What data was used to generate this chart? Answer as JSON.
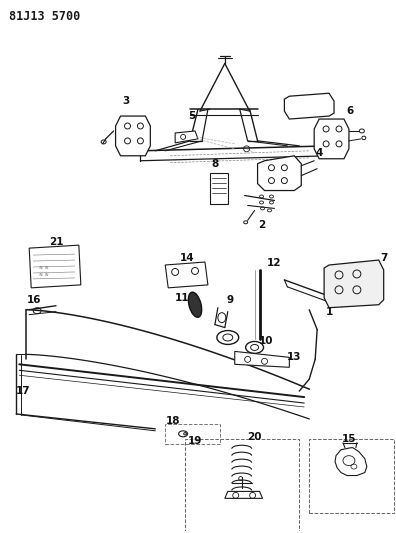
{
  "title": "81J13 5700",
  "title_fontsize": 8.5,
  "title_fontweight": "bold",
  "bg_color": "#ffffff",
  "line_color": "#1a1a1a",
  "label_color": "#111111",
  "label_fontsize": 6.5,
  "fig_width": 3.96,
  "fig_height": 5.33,
  "dpi": 100,
  "label_bold_fontsize": 7.5
}
